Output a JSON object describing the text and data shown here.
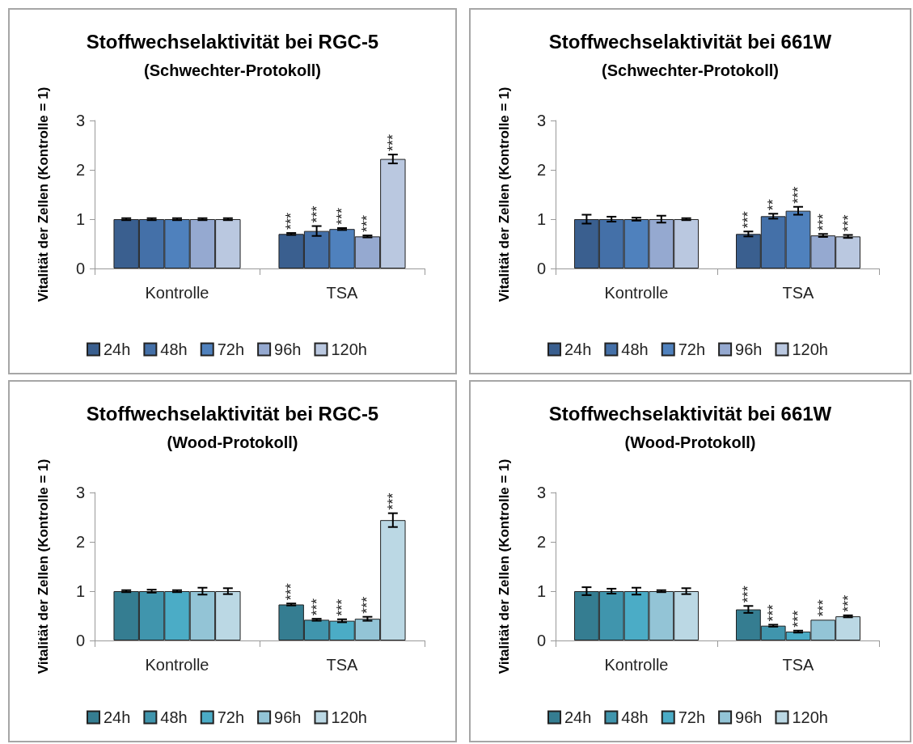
{
  "chart_data": [
    {
      "type": "bar",
      "title": "Stoffwechselaktivität bei RGC-5",
      "subtitle": "(Schwechter-Protokoll)",
      "ylabel": "Vitalität der Zellen (Kontrolle = 1)",
      "categories": [
        "Kontrolle",
        "TSA"
      ],
      "ylim": [
        0,
        3
      ],
      "yticks": [
        0,
        1,
        2,
        3
      ],
      "legend": "bottom",
      "series": [
        {
          "name": "24h",
          "color": "#3a5f8f",
          "values": [
            1,
            0.7
          ],
          "errors": [
            0.02,
            0.02
          ],
          "value_labels": [
            null,
            "***"
          ]
        },
        {
          "name": "48h",
          "color": "#4470a8",
          "values": [
            1,
            0.76
          ],
          "errors": [
            0.02,
            0.1
          ],
          "value_labels": [
            null,
            "***"
          ]
        },
        {
          "name": "72h",
          "color": "#4f81bd",
          "values": [
            1,
            0.8
          ],
          "errors": [
            0.02,
            0.02
          ],
          "value_labels": [
            null,
            "***"
          ]
        },
        {
          "name": "96h",
          "color": "#95a9d0",
          "values": [
            1,
            0.65
          ],
          "errors": [
            0.02,
            0.02
          ],
          "value_labels": [
            null,
            "***"
          ]
        },
        {
          "name": "120h",
          "color": "#bac8e0",
          "values": [
            1,
            2.22
          ],
          "errors": [
            0.02,
            0.09
          ],
          "value_labels": [
            null,
            "***"
          ]
        }
      ]
    },
    {
      "type": "bar",
      "title": "Stoffwechselaktivität bei 661W",
      "subtitle": "(Schwechter-Protokoll)",
      "ylabel": "Vitalität der Zellen (Kontrolle = 1)",
      "categories": [
        "Kontrolle",
        "TSA"
      ],
      "ylim": [
        0,
        3
      ],
      "yticks": [
        0,
        1,
        2,
        3
      ],
      "legend": "bottom",
      "series": [
        {
          "name": "24h",
          "color": "#3a5f8f",
          "values": [
            1,
            0.7
          ],
          "errors": [
            0.09,
            0.05
          ],
          "value_labels": [
            null,
            "***"
          ]
        },
        {
          "name": "48h",
          "color": "#4470a8",
          "values": [
            1,
            1.06
          ],
          "errors": [
            0.05,
            0.05
          ],
          "value_labels": [
            null,
            "**"
          ]
        },
        {
          "name": "72h",
          "color": "#4f81bd",
          "values": [
            1,
            1.17
          ],
          "errors": [
            0.03,
            0.08
          ],
          "value_labels": [
            null,
            "***"
          ]
        },
        {
          "name": "96h",
          "color": "#95a9d0",
          "values": [
            1,
            0.67
          ],
          "errors": [
            0.07,
            0.03
          ],
          "value_labels": [
            null,
            "***"
          ]
        },
        {
          "name": "120h",
          "color": "#bac8e0",
          "values": [
            1,
            0.65
          ],
          "errors": [
            0.02,
            0.03
          ],
          "value_labels": [
            null,
            "***"
          ]
        }
      ]
    },
    {
      "type": "bar",
      "title": "Stoffwechselaktivität bei RGC-5",
      "subtitle": "(Wood-Protokoll)",
      "ylabel": "Vitalität der Zellen (Kontrolle = 1)",
      "categories": [
        "Kontrolle",
        "TSA"
      ],
      "ylim": [
        0,
        3
      ],
      "yticks": [
        0,
        1,
        2,
        3
      ],
      "legend": "bottom",
      "series": [
        {
          "name": "24h",
          "color": "#357d91",
          "values": [
            1,
            0.73
          ],
          "errors": [
            0.02,
            0.02
          ],
          "value_labels": [
            null,
            "***"
          ]
        },
        {
          "name": "48h",
          "color": "#4095ad",
          "values": [
            1,
            0.42
          ],
          "errors": [
            0.03,
            0.02
          ],
          "value_labels": [
            null,
            "***"
          ]
        },
        {
          "name": "72h",
          "color": "#4bacc6",
          "values": [
            1,
            0.4
          ],
          "errors": [
            0.02,
            0.03
          ],
          "value_labels": [
            null,
            "***"
          ]
        },
        {
          "name": "96h",
          "color": "#93c4d6",
          "values": [
            1,
            0.44
          ],
          "errors": [
            0.07,
            0.04
          ],
          "value_labels": [
            null,
            "***"
          ]
        },
        {
          "name": "120h",
          "color": "#bbd8e4",
          "values": [
            1,
            2.44
          ],
          "errors": [
            0.06,
            0.14
          ],
          "value_labels": [
            null,
            "***"
          ]
        }
      ]
    },
    {
      "type": "bar",
      "title": "Stoffwechselaktivität bei 661W",
      "subtitle": "(Wood-Protokoll)",
      "ylabel": "Vitalität der Zellen (Kontrolle = 1)",
      "categories": [
        "Kontrolle",
        "TSA"
      ],
      "ylim": [
        0,
        3
      ],
      "yticks": [
        0,
        1,
        2,
        3
      ],
      "legend": "bottom",
      "series": [
        {
          "name": "24h",
          "color": "#357d91",
          "values": [
            1,
            0.63
          ],
          "errors": [
            0.08,
            0.07
          ],
          "value_labels": [
            null,
            "***"
          ]
        },
        {
          "name": "48h",
          "color": "#4095ad",
          "values": [
            1,
            0.3
          ],
          "errors": [
            0.05,
            0.02
          ],
          "value_labels": [
            null,
            "***"
          ]
        },
        {
          "name": "72h",
          "color": "#4bacc6",
          "values": [
            1,
            0.18
          ],
          "errors": [
            0.07,
            0.02
          ],
          "value_labels": [
            null,
            "***"
          ]
        },
        {
          "name": "96h",
          "color": "#93c4d6",
          "values": [
            1,
            0.42
          ],
          "errors": [
            0.02,
            null
          ],
          "value_labels": [
            null,
            "***"
          ]
        },
        {
          "name": "120h",
          "color": "#bbd8e4",
          "values": [
            1,
            0.49
          ],
          "errors": [
            0.06,
            0.02
          ],
          "value_labels": [
            null,
            "***"
          ]
        }
      ]
    }
  ]
}
